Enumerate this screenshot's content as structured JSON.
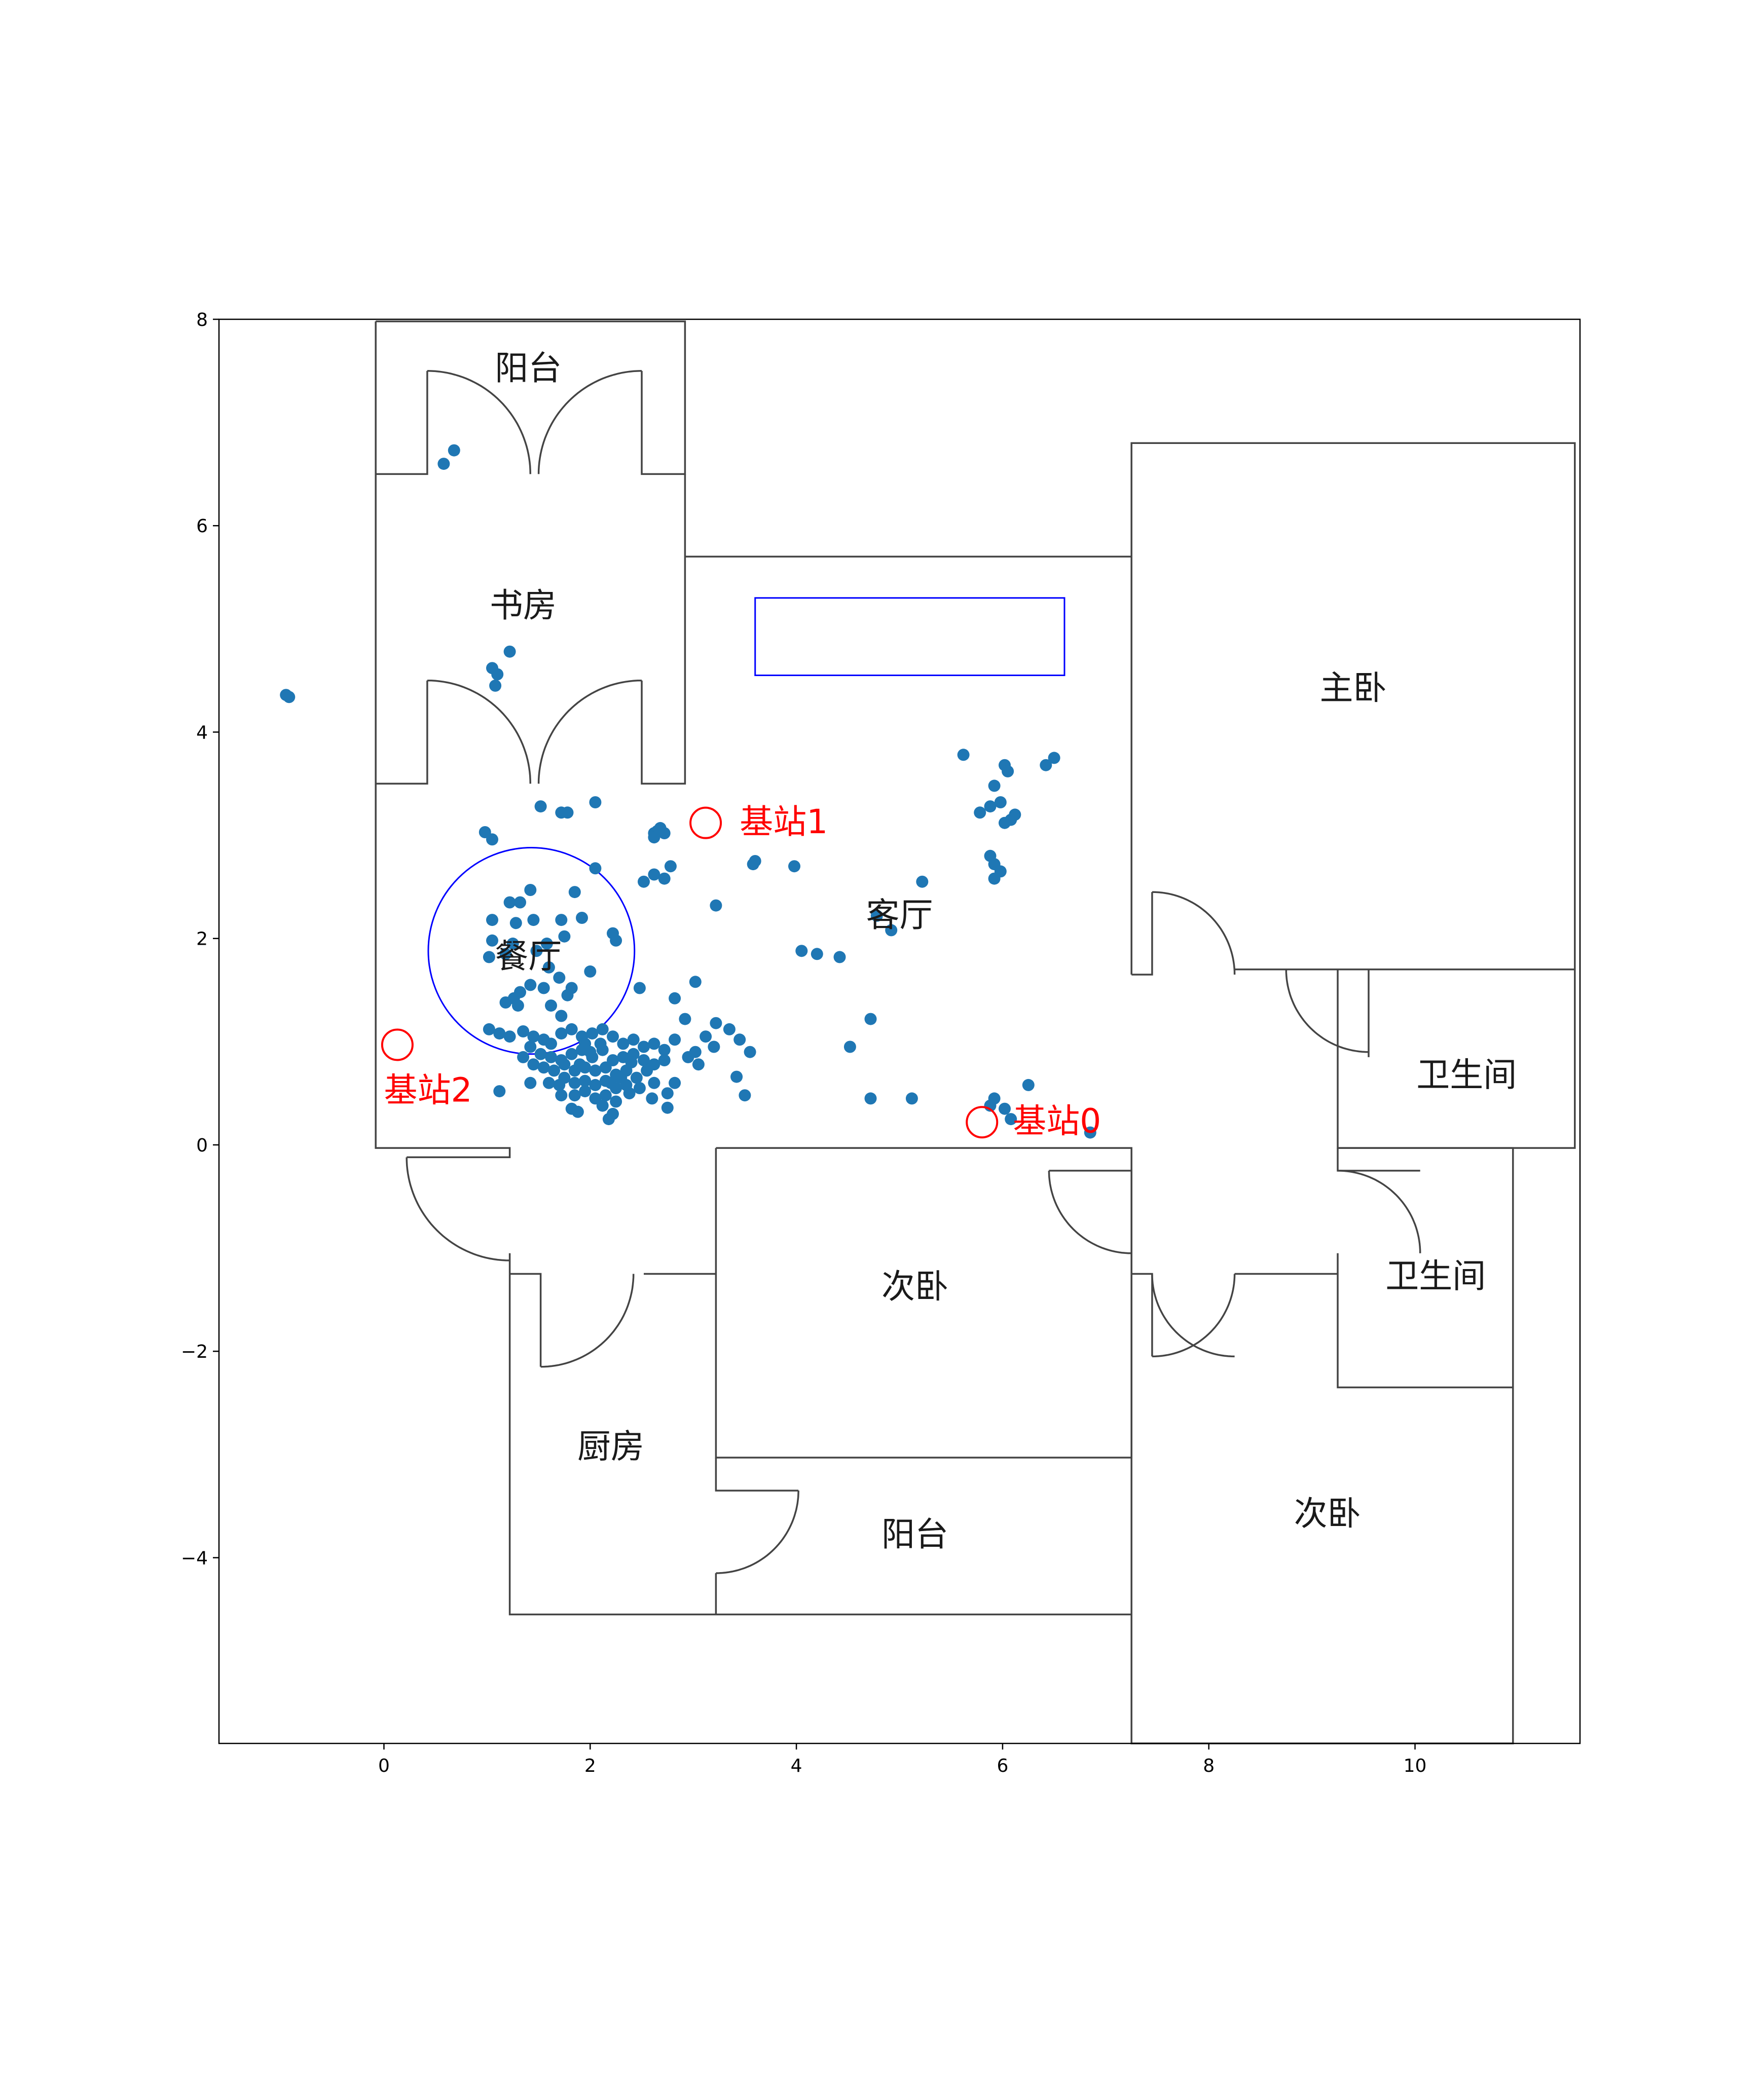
{
  "chart_data": {
    "type": "scatter",
    "title": "",
    "xlabel": "",
    "ylabel": "",
    "xlim": [
      -1.6,
      11.6
    ],
    "ylim": [
      -5.8,
      8.0
    ],
    "xticks": [
      0,
      2,
      4,
      6,
      8,
      10
    ],
    "yticks": [
      -4,
      -2,
      0,
      2,
      4,
      6,
      8
    ],
    "xtick_labels": [
      "0",
      "2",
      "4",
      "6",
      "8",
      "10"
    ],
    "ytick_labels": [
      "−4",
      "−2",
      "0",
      "2",
      "4",
      "6",
      "8"
    ],
    "grid": false,
    "point_color": "#1f77b4",
    "room_labels": [
      {
        "name": "阳台",
        "x": 1.4,
        "y": 7.5
      },
      {
        "name": "书房",
        "x": 1.35,
        "y": 5.2
      },
      {
        "name": "客厅",
        "x": 5.0,
        "y": 2.2
      },
      {
        "name": "餐厅",
        "x": 1.4,
        "y": 1.8
      },
      {
        "name": "主卧",
        "x": 9.4,
        "y": 4.4
      },
      {
        "name": "卫生间",
        "x": 10.5,
        "y": 0.65
      },
      {
        "name": "卫生间",
        "x": 10.2,
        "y": -1.3
      },
      {
        "name": "次卧",
        "x": 5.15,
        "y": -1.4
      },
      {
        "name": "厨房",
        "x": 2.2,
        "y": -2.95
      },
      {
        "name": "阳台",
        "x": 5.15,
        "y": -3.8
      },
      {
        "name": "次卧",
        "x": 9.15,
        "y": -3.6
      }
    ],
    "base_stations": [
      {
        "name": "基站0",
        "x": 5.8,
        "y": 0.22,
        "label_x": 6.1,
        "label_y": 0.12
      },
      {
        "name": "基站1",
        "x": 3.12,
        "y": 3.12,
        "label_x": 3.45,
        "label_y": 3.02
      },
      {
        "name": "基站2",
        "x": 0.13,
        "y": 0.97,
        "label_x": 0.0,
        "label_y": 0.42
      }
    ],
    "station_color": "#ff0000",
    "dining_circle": {
      "cx": 1.43,
      "cy": 1.88,
      "r": 1.0,
      "color": "#0000ff"
    },
    "blue_rectangle": {
      "x0": 3.6,
      "y0": 4.55,
      "x1": 6.6,
      "y1": 5.3,
      "color": "#0000ff"
    },
    "wall_color": "#444444",
    "walls": [
      [
        [
          -0.08,
          7.98
        ],
        [
          2.92,
          7.98
        ],
        [
          2.92,
          6.5
        ],
        [
          2.5,
          6.5
        ],
        [
          2.5,
          7.5
        ]
      ],
      [
        [
          -0.08,
          7.98
        ],
        [
          -0.08,
          6.5
        ],
        [
          0.42,
          6.5
        ],
        [
          0.42,
          7.5
        ]
      ],
      [
        [
          -0.08,
          6.5
        ],
        [
          -0.08,
          3.5
        ],
        [
          0.42,
          3.5
        ],
        [
          0.42,
          4.5
        ]
      ],
      [
        [
          2.92,
          6.5
        ],
        [
          2.92,
          3.5
        ],
        [
          2.5,
          3.5
        ],
        [
          2.5,
          4.5
        ]
      ],
      [
        [
          2.92,
          5.7
        ],
        [
          7.25,
          5.7
        ]
      ],
      [
        [
          7.25,
          1.65
        ],
        [
          7.25,
          6.8
        ],
        [
          11.55,
          6.8
        ],
        [
          11.55,
          -0.03
        ],
        [
          9.25,
          -0.03
        ],
        [
          9.25,
          1.7
        ],
        [
          9.55,
          1.7
        ],
        [
          9.55,
          0.85
        ]
      ],
      [
        [
          7.25,
          1.65
        ],
        [
          7.45,
          1.65
        ],
        [
          7.45,
          2.45
        ]
      ],
      [
        [
          8.25,
          1.7
        ],
        [
          11.55,
          1.7
        ]
      ],
      [
        [
          -0.08,
          3.5
        ],
        [
          -0.08,
          -0.03
        ],
        [
          1.22,
          -0.03
        ],
        [
          1.22,
          -0.12
        ],
        [
          0.22,
          -0.12
        ]
      ],
      [
        [
          3.22,
          -0.03
        ],
        [
          3.22,
          -3.03
        ],
        [
          7.25,
          -3.03
        ],
        [
          7.25,
          -0.25
        ],
        [
          6.45,
          -0.25
        ]
      ],
      [
        [
          3.22,
          -0.03
        ],
        [
          7.25,
          -0.03
        ],
        [
          7.25,
          -0.25
        ]
      ],
      [
        [
          7.25,
          -0.25
        ],
        [
          7.25,
          -5.8
        ],
        [
          10.95,
          -5.8
        ],
        [
          10.95,
          -2.35
        ],
        [
          9.25,
          -2.35
        ],
        [
          9.25,
          -1.05
        ]
      ],
      [
        [
          9.25,
          -0.03
        ],
        [
          10.95,
          -0.03
        ],
        [
          10.95,
          -2.35
        ]
      ],
      [
        [
          9.25,
          -0.03
        ],
        [
          9.25,
          -0.25
        ],
        [
          10.05,
          -0.25
        ]
      ],
      [
        [
          8.25,
          -1.25
        ],
        [
          9.25,
          -1.25
        ]
      ],
      [
        [
          7.25,
          -1.25
        ],
        [
          7.45,
          -1.25
        ],
        [
          7.45,
          -2.05
        ]
      ],
      [
        [
          1.22,
          -1.05
        ],
        [
          1.22,
          -4.55
        ],
        [
          7.25,
          -4.55
        ]
      ],
      [
        [
          1.22,
          -1.25
        ],
        [
          1.52,
          -1.25
        ],
        [
          1.52,
          -2.15
        ]
      ],
      [
        [
          2.52,
          -1.25
        ],
        [
          3.22,
          -1.25
        ]
      ],
      [
        [
          3.22,
          -3.03
        ],
        [
          3.22,
          -3.35
        ],
        [
          4.02,
          -3.35
        ]
      ],
      [
        [
          3.22,
          -4.15
        ],
        [
          3.22,
          -4.55
        ]
      ]
    ],
    "door_arcs": [
      {
        "cx": 0.42,
        "cy": 6.5,
        "r": 1.0,
        "from": 90,
        "to": 0
      },
      {
        "cx": 2.5,
        "cy": 6.5,
        "r": 1.0,
        "from": 90,
        "to": 180
      },
      {
        "cx": 0.42,
        "cy": 3.5,
        "r": 1.0,
        "from": 90,
        "to": 0
      },
      {
        "cx": 2.5,
        "cy": 3.5,
        "r": 1.0,
        "from": 90,
        "to": 180
      },
      {
        "cx": 7.45,
        "cy": 1.65,
        "r": 0.8,
        "from": 90,
        "to": 0
      },
      {
        "cx": 9.55,
        "cy": 1.7,
        "r": 0.8,
        "from": 270,
        "to": 180
      },
      {
        "cx": 1.22,
        "cy": -0.12,
        "r": 1.0,
        "from": 270,
        "to": 180
      },
      {
        "cx": 1.52,
        "cy": -1.25,
        "r": 0.9,
        "from": 270,
        "to": 360
      },
      {
        "cx": 3.22,
        "cy": -3.35,
        "r": 0.8,
        "from": 270,
        "to": 360
      },
      {
        "cx": 7.25,
        "cy": -0.25,
        "r": 0.8,
        "from": 270,
        "to": 180
      },
      {
        "cx": 7.45,
        "cy": -1.25,
        "r": 0.8,
        "from": 270,
        "to": 360
      },
      {
        "cx": 9.25,
        "cy": -1.05,
        "r": 0.8,
        "from": 90,
        "to": 0
      },
      {
        "cx": 8.25,
        "cy": -1.25,
        "r": 0.8,
        "from": 270,
        "to": 180
      }
    ],
    "points": [
      [
        -0.95,
        4.36
      ],
      [
        -0.92,
        4.34
      ],
      [
        0.58,
        6.6
      ],
      [
        0.68,
        6.73
      ],
      [
        1.05,
        4.62
      ],
      [
        1.1,
        4.56
      ],
      [
        1.08,
        4.45
      ],
      [
        1.22,
        4.78
      ],
      [
        1.52,
        3.28
      ],
      [
        1.72,
        3.22
      ],
      [
        1.78,
        3.22
      ],
      [
        2.05,
        3.32
      ],
      [
        0.98,
        3.03
      ],
      [
        1.05,
        2.96
      ],
      [
        2.62,
        3.02
      ],
      [
        2.68,
        3.07
      ],
      [
        2.65,
        3.04
      ],
      [
        2.62,
        2.98
      ],
      [
        2.72,
        3.02
      ],
      [
        2.05,
        2.68
      ],
      [
        2.52,
        2.55
      ],
      [
        2.62,
        2.62
      ],
      [
        2.78,
        2.7
      ],
      [
        2.72,
        2.58
      ],
      [
        3.22,
        2.32
      ],
      [
        3.58,
        2.72
      ],
      [
        3.6,
        2.75
      ],
      [
        3.98,
        2.7
      ],
      [
        1.42,
        2.47
      ],
      [
        1.22,
        2.35
      ],
      [
        1.32,
        2.35
      ],
      [
        1.05,
        2.18
      ],
      [
        1.28,
        2.15
      ],
      [
        1.45,
        2.18
      ],
      [
        1.72,
        2.18
      ],
      [
        1.92,
        2.2
      ],
      [
        1.85,
        2.45
      ],
      [
        1.75,
        2.02
      ],
      [
        1.05,
        1.98
      ],
      [
        1.25,
        1.95
      ],
      [
        1.58,
        1.95
      ],
      [
        1.48,
        1.88
      ],
      [
        2.22,
        2.05
      ],
      [
        2.25,
        1.98
      ],
      [
        1.02,
        1.82
      ],
      [
        1.18,
        1.85
      ],
      [
        1.6,
        1.72
      ],
      [
        1.7,
        1.62
      ],
      [
        1.82,
        1.52
      ],
      [
        2.0,
        1.68
      ],
      [
        1.42,
        1.55
      ],
      [
        1.55,
        1.52
      ],
      [
        1.32,
        1.48
      ],
      [
        1.78,
        1.45
      ],
      [
        1.18,
        1.38
      ],
      [
        1.26,
        1.42
      ],
      [
        1.3,
        1.35
      ],
      [
        1.62,
        1.35
      ],
      [
        1.72,
        1.25
      ],
      [
        2.48,
        1.52
      ],
      [
        2.92,
        1.22
      ],
      [
        2.82,
        1.42
      ],
      [
        3.02,
        1.58
      ],
      [
        1.02,
        1.12
      ],
      [
        1.12,
        1.08
      ],
      [
        1.22,
        1.05
      ],
      [
        1.35,
        1.1
      ],
      [
        1.45,
        1.05
      ],
      [
        1.55,
        1.02
      ],
      [
        1.62,
        0.98
      ],
      [
        1.72,
        1.08
      ],
      [
        1.82,
        1.12
      ],
      [
        1.92,
        1.05
      ],
      [
        2.02,
        1.08
      ],
      [
        2.12,
        1.12
      ],
      [
        2.22,
        1.05
      ],
      [
        2.32,
        0.98
      ],
      [
        2.42,
        1.02
      ],
      [
        2.52,
        0.95
      ],
      [
        1.42,
        0.95
      ],
      [
        1.52,
        0.88
      ],
      [
        1.62,
        0.85
      ],
      [
        1.72,
        0.82
      ],
      [
        1.82,
        0.88
      ],
      [
        1.92,
        0.92
      ],
      [
        2.02,
        0.85
      ],
      [
        2.12,
        0.92
      ],
      [
        2.22,
        0.82
      ],
      [
        2.32,
        0.85
      ],
      [
        2.42,
        0.88
      ],
      [
        2.52,
        0.82
      ],
      [
        1.35,
        0.85
      ],
      [
        1.45,
        0.78
      ],
      [
        1.55,
        0.75
      ],
      [
        1.65,
        0.72
      ],
      [
        1.75,
        0.78
      ],
      [
        1.85,
        0.72
      ],
      [
        1.95,
        0.75
      ],
      [
        2.05,
        0.72
      ],
      [
        2.15,
        0.75
      ],
      [
        2.25,
        0.68
      ],
      [
        2.35,
        0.72
      ],
      [
        2.45,
        0.65
      ],
      [
        1.75,
        0.65
      ],
      [
        1.85,
        0.6
      ],
      [
        1.95,
        0.62
      ],
      [
        2.05,
        0.58
      ],
      [
        2.15,
        0.62
      ],
      [
        2.25,
        0.55
      ],
      [
        2.35,
        0.58
      ],
      [
        1.85,
        0.48
      ],
      [
        1.95,
        0.52
      ],
      [
        2.05,
        0.45
      ],
      [
        2.15,
        0.48
      ],
      [
        2.25,
        0.42
      ],
      [
        1.82,
        0.35
      ],
      [
        2.12,
        0.38
      ],
      [
        2.22,
        0.3
      ],
      [
        2.18,
        0.25
      ],
      [
        1.88,
        0.32
      ],
      [
        1.12,
        0.52
      ],
      [
        1.42,
        0.6
      ],
      [
        1.72,
        0.48
      ],
      [
        2.62,
        0.98
      ],
      [
        2.72,
        0.92
      ],
      [
        2.82,
        1.02
      ],
      [
        2.62,
        0.78
      ],
      [
        2.72,
        0.82
      ],
      [
        2.95,
        0.85
      ],
      [
        3.05,
        0.78
      ],
      [
        2.62,
        0.6
      ],
      [
        2.75,
        0.5
      ],
      [
        2.48,
        0.55
      ],
      [
        2.55,
        0.72
      ],
      [
        2.82,
        0.6
      ],
      [
        2.6,
        0.45
      ],
      [
        2.75,
        0.36
      ],
      [
        3.22,
        1.18
      ],
      [
        3.12,
        1.05
      ],
      [
        3.35,
        1.12
      ],
      [
        3.45,
        1.02
      ],
      [
        3.55,
        0.9
      ],
      [
        3.42,
        0.66
      ],
      [
        3.5,
        0.48
      ],
      [
        3.02,
        0.9
      ],
      [
        3.2,
        0.95
      ],
      [
        1.95,
        0.98
      ],
      [
        2.1,
        0.98
      ],
      [
        2.4,
        0.8
      ],
      [
        2.0,
        0.9
      ],
      [
        2.2,
        0.6
      ],
      [
        1.9,
        0.78
      ],
      [
        2.3,
        0.65
      ],
      [
        2.38,
        0.5
      ],
      [
        1.6,
        0.6
      ],
      [
        1.7,
        0.58
      ],
      [
        4.05,
        1.88
      ],
      [
        4.2,
        1.85
      ],
      [
        4.42,
        1.82
      ],
      [
        4.52,
        0.95
      ],
      [
        4.72,
        1.22
      ],
      [
        4.72,
        0.45
      ],
      [
        5.12,
        0.45
      ],
      [
        4.78,
        2.22
      ],
      [
        4.92,
        2.08
      ],
      [
        5.22,
        2.55
      ],
      [
        5.62,
        3.78
      ],
      [
        5.78,
        3.22
      ],
      [
        5.88,
        3.28
      ],
      [
        5.92,
        3.48
      ],
      [
        5.98,
        3.32
      ],
      [
        6.02,
        3.68
      ],
      [
        6.05,
        3.62
      ],
      [
        6.02,
        3.12
      ],
      [
        6.08,
        3.15
      ],
      [
        6.12,
        3.2
      ],
      [
        6.42,
        3.68
      ],
      [
        6.5,
        3.75
      ],
      [
        5.88,
        2.8
      ],
      [
        5.92,
        2.72
      ],
      [
        5.98,
        2.65
      ],
      [
        5.92,
        2.58
      ],
      [
        5.92,
        0.45
      ],
      [
        5.88,
        0.38
      ],
      [
        6.02,
        0.35
      ],
      [
        6.08,
        0.25
      ],
      [
        6.25,
        0.58
      ],
      [
        6.85,
        0.12
      ]
    ]
  }
}
